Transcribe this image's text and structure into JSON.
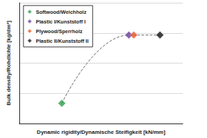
{
  "chart_data": {
    "type": "scatter",
    "x_label": "Dynamic rigidity/Dynamische Steifigkeit [kN/mm]",
    "y_label": "Bulk density/Rohdichte [kg/dm³]",
    "xlim": [
      0,
      10
    ],
    "ylim": [
      0,
      4
    ],
    "yticks": [
      0,
      1,
      2,
      3,
      4
    ],
    "grid": true,
    "tick_labels": false,
    "legend": "upper left",
    "line_style": "dashed",
    "series": [
      {
        "name": "Softwood/Weichholz",
        "color": "#2e9e4f",
        "marker": "diamond",
        "x": [
          2.6
        ],
        "values": [
          0.67
        ]
      },
      {
        "name": "Plastic I/Kunststoff I",
        "color": "#6a3d9a",
        "marker": "diamond",
        "x": [
          6.7
        ],
        "values": [
          2.93
        ]
      },
      {
        "name": "Plywood/Sperrholz",
        "color": "#e8572a",
        "marker": "diamond",
        "x": [
          7.0
        ],
        "values": [
          2.93
        ]
      },
      {
        "name": "Plastic II/Kunststoff II",
        "color": "#111111",
        "marker": "diamond",
        "x": [
          8.6
        ],
        "values": [
          2.93
        ]
      }
    ]
  }
}
